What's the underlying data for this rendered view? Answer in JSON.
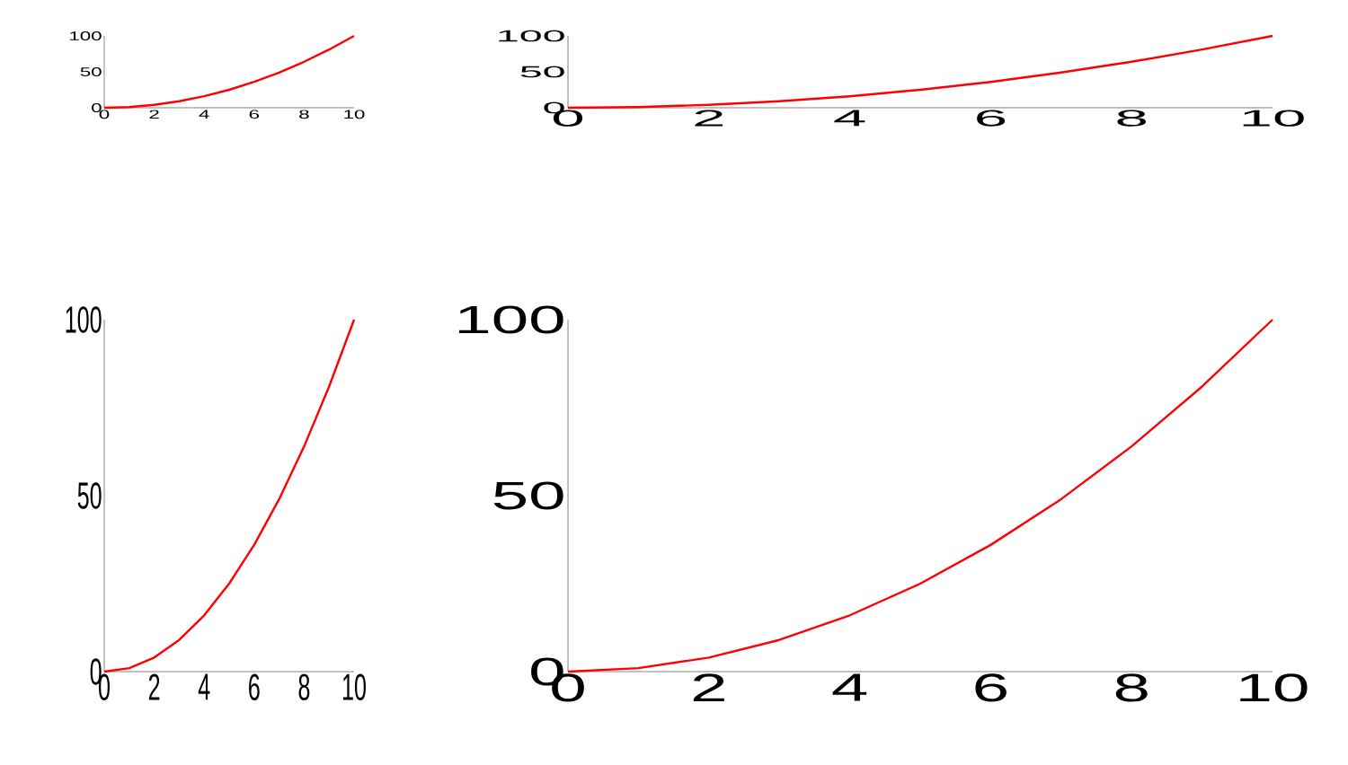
{
  "chart_data": [
    {
      "type": "line",
      "x": [
        0,
        1,
        2,
        3,
        4,
        5,
        6,
        7,
        8,
        9,
        10
      ],
      "values": [
        0,
        1,
        4,
        9,
        16,
        25,
        36,
        49,
        64,
        81,
        100
      ],
      "color": "#ff0000",
      "xlim": [
        0,
        10
      ],
      "ylim": [
        0,
        100
      ],
      "xticks": [
        0,
        2,
        4,
        6,
        8,
        10
      ],
      "yticks": [
        0,
        50,
        100
      ]
    },
    {
      "type": "line",
      "x": [
        0,
        1,
        2,
        3,
        4,
        5,
        6,
        7,
        8,
        9,
        10
      ],
      "values": [
        0,
        1,
        4,
        9,
        16,
        25,
        36,
        49,
        64,
        81,
        100
      ],
      "color": "#ff0000",
      "xlim": [
        0,
        10
      ],
      "ylim": [
        0,
        100
      ],
      "xticks": [
        0,
        2,
        4,
        6,
        8,
        10
      ],
      "yticks": [
        0,
        50,
        100
      ]
    },
    {
      "type": "line",
      "x": [
        0,
        1,
        2,
        3,
        4,
        5,
        6,
        7,
        8,
        9,
        10
      ],
      "values": [
        0,
        1,
        4,
        9,
        16,
        25,
        36,
        49,
        64,
        81,
        100
      ],
      "color": "#ff0000",
      "xlim": [
        0,
        10
      ],
      "ylim": [
        0,
        100
      ],
      "xticks": [
        0,
        2,
        4,
        6,
        8,
        10
      ],
      "yticks": [
        0,
        50,
        100
      ]
    },
    {
      "type": "line",
      "x": [
        0,
        1,
        2,
        3,
        4,
        5,
        6,
        7,
        8,
        9,
        10
      ],
      "values": [
        0,
        1,
        4,
        9,
        16,
        25,
        36,
        49,
        64,
        81,
        100
      ],
      "color": "#ff0000",
      "xlim": [
        0,
        10
      ],
      "ylim": [
        0,
        100
      ],
      "xticks": [
        0,
        2,
        4,
        6,
        8,
        10
      ],
      "yticks": [
        0,
        50,
        100
      ]
    }
  ]
}
